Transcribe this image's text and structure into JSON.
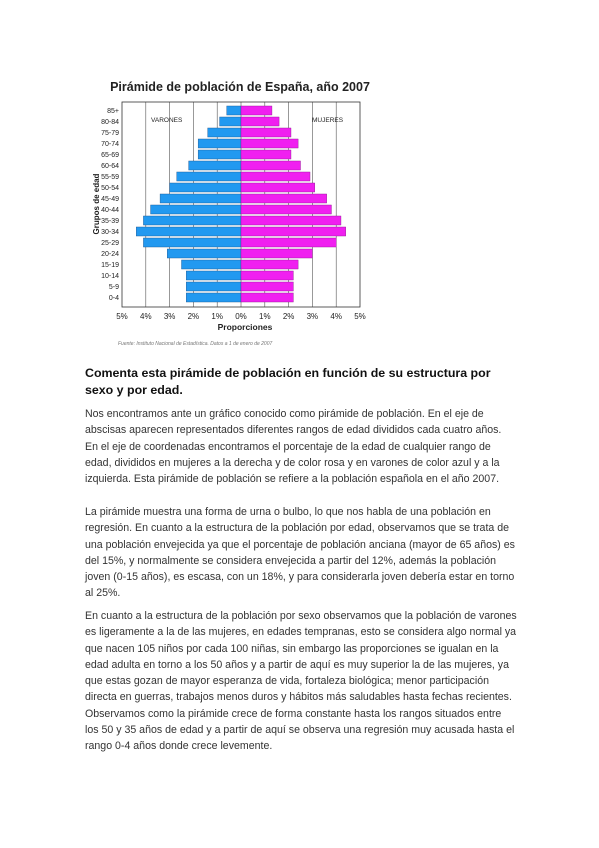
{
  "chart_data": {
    "type": "bar",
    "title": "Pirámide de población de España, año 2007",
    "ylabel": "Grupos de edad",
    "xlabel": "Proporciones",
    "left_label": "VARONES",
    "right_label": "MUJERES",
    "categories": [
      "85+",
      "80-84",
      "75-79",
      "70-74",
      "65-69",
      "60-64",
      "55-59",
      "50-54",
      "45-49",
      "40-44",
      "35-39",
      "30-34",
      "25-29",
      "20-24",
      "15-19",
      "10-14",
      "5-9",
      "0-4"
    ],
    "series": [
      {
        "name": "VARONES",
        "values": [
          0.6,
          0.9,
          1.4,
          1.8,
          1.8,
          2.2,
          2.7,
          3.0,
          3.4,
          3.8,
          4.1,
          4.4,
          4.1,
          3.1,
          2.5,
          2.3,
          2.3,
          2.3
        ],
        "color": "#2299f0"
      },
      {
        "name": "MUJERES",
        "values": [
          1.3,
          1.6,
          2.1,
          2.4,
          2.1,
          2.5,
          2.9,
          3.1,
          3.6,
          3.8,
          4.2,
          4.4,
          4.0,
          3.0,
          2.4,
          2.2,
          2.2,
          2.2
        ],
        "color": "#f020f0"
      }
    ],
    "xticks": [
      "5%",
      "4%",
      "3%",
      "2%",
      "1%",
      "0%",
      "1%",
      "2%",
      "3%",
      "4%",
      "5%"
    ],
    "xlim": [
      -5,
      5
    ],
    "source": "Fuente: Instituto Nacional de Estadística. Datos a 1 de enero de 2007"
  },
  "question": "Comenta esta pirámide de población en función de su estructura por sexo y por edad.",
  "paragraphs": [
    "Nos encontramos ante un gráfico conocido como pirámide de población. En el eje de abscisas aparecen representados diferentes rangos de edad divididos cada cuatro años. En el eje de coordenadas encontramos el porcentaje de la edad de cualquier rango de edad, divididos en mujeres a la derecha y de color rosa y en varones de color azul y a la izquierda.  Esta pirámide de población se refiere a la población española en el año 2007.",
    "La pirámide muestra una forma de urna o bulbo, lo que nos habla de una población en regresión. En cuanto a la estructura de la población por edad, observamos que se trata de una población envejecida ya que el porcentaje de población anciana (mayor de 65 años) es del 15%, y normalmente se considera envejecida a partir del 12%, además la población joven (0-15 años), es escasa, con un 18%, y para considerarla joven debería estar en torno al 25%.",
    "En cuanto a la estructura de la población por sexo observamos que la población de varones es ligeramente a la de las mujeres, en edades tempranas, esto se considera algo normal ya que nacen 105 niños por cada 100 niñas, sin embargo las proporciones se igualan en la edad adulta en torno a los 50 años y a partir de aquí es muy superior la de las mujeres, ya que estas gozan de mayor esperanza de vida, fortaleza biológica; menor participación directa en guerras, trabajos menos duros y hábitos más saludables hasta fechas recientes. Observamos como la pirámide crece de forma constante hasta los rangos situados entre los 50 y 35 años de edad y a partir de aquí se observa una regresión muy acusada hasta el rango 0-4 años donde crece levemente."
  ]
}
